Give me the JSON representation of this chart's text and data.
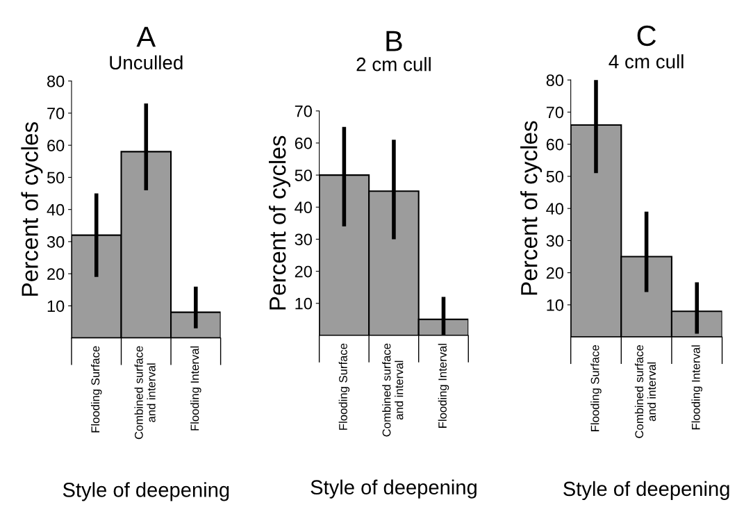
{
  "chart_data": [
    {
      "type": "bar",
      "title": "A",
      "subtitle": "Unculled",
      "xlabel": "Style of deepening",
      "ylabel": "Percent of cycles",
      "categories": [
        "Flooding Surface",
        "Combined surface\nand interval",
        "Flooding Interval"
      ],
      "values": [
        32,
        58,
        8
      ],
      "errors": [
        13,
        [
          46,
          73
        ],
        [
          3,
          16
        ]
      ],
      "color": "#9c9c9c",
      "ylim": [
        0,
        80
      ],
      "yticks": [
        10,
        20,
        30,
        40,
        50,
        60,
        70,
        80
      ],
      "grid": false
    },
    {
      "type": "bar",
      "title": "B",
      "subtitle": "2 cm cull",
      "xlabel": "Style of deepening",
      "ylabel": "Percent of cycles",
      "categories": [
        "Flooding Surface",
        "Combined surface\nand interval",
        "Flooding Interval"
      ],
      "values": [
        50,
        45,
        5
      ],
      "errors": [
        [
          34,
          65
        ],
        [
          30,
          61
        ],
        [
          0,
          12
        ]
      ],
      "color": "#9c9c9c",
      "ylim": [
        0,
        70
      ],
      "yticks": [
        10,
        20,
        30,
        40,
        50,
        60,
        70
      ],
      "grid": false
    },
    {
      "type": "bar",
      "title": "C",
      "subtitle": "4 cm cull",
      "xlabel": "Style of deepening",
      "ylabel": "Percent of cycles",
      "categories": [
        "Flooding Surface",
        "Combined surface\nand interval",
        "Flooding Interval"
      ],
      "values": [
        66,
        25,
        8
      ],
      "errors": [
        15,
        [
          14,
          39
        ],
        [
          1,
          17
        ]
      ],
      "color": "#9c9c9c",
      "ylim": [
        0,
        80
      ],
      "yticks": [
        10,
        20,
        30,
        40,
        50,
        60,
        70,
        80
      ],
      "grid": false
    }
  ]
}
